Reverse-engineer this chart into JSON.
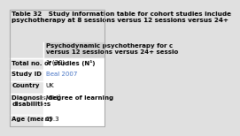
{
  "title_line1": "Table 32   Study information table for cohort studies include",
  "title_line2": "psychotherapy at 8 sessions versus 12 sessions versus 24+",
  "col_header_line1": "Psychodynamic psychotherapy for c",
  "col_header_line2": "versus 12 sessions versus 24+ sessio",
  "rows": [
    [
      "Total no. of studies (N¹)",
      "1 (30)"
    ],
    [
      "Study ID",
      "Beal 2007"
    ],
    [
      "Country",
      "UK"
    ],
    [
      "Diagnosis/degree of learning\ndisabilities",
      "Mild²"
    ],
    [
      "Age (mean)",
      "29.3"
    ]
  ],
  "bg_color": "#e0e0e0",
  "col_header_bg": "#d0d0d0",
  "row_alt_bg": "#efefef",
  "row_bg": "#e4e4e4",
  "title_font_size": 5.2,
  "header_font_size": 5.0,
  "cell_font_size": 5.0,
  "link_color": "#4472c4"
}
